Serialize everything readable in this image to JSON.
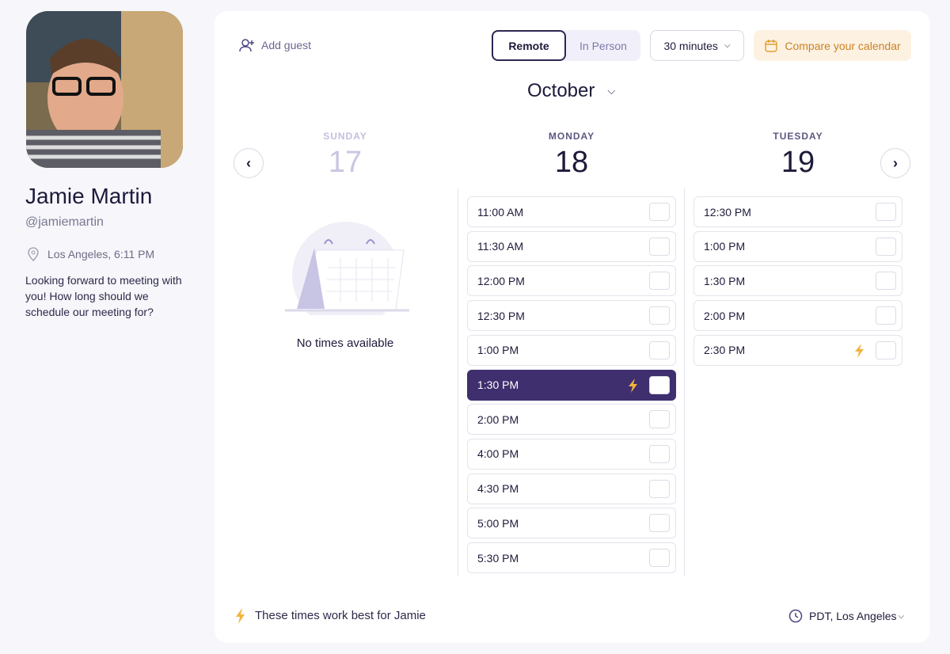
{
  "profile": {
    "name": "Jamie Martin",
    "handle": "@jamiemartin",
    "location": "Los Angeles, 6:11 PM",
    "bio": "Looking forward to meeting with you! How long should we schedule our meeting for?"
  },
  "header": {
    "add_guest": "Add guest",
    "modes": [
      "Remote",
      "In Person"
    ],
    "active_mode": 0,
    "duration": "30 minutes",
    "compare": "Compare your calendar"
  },
  "month": "October",
  "days": [
    {
      "weekday": "SUNDAY",
      "date": "17",
      "muted": true,
      "empty": "No times available",
      "slots": []
    },
    {
      "weekday": "MONDAY",
      "date": "18",
      "slots": [
        {
          "time": "11:00 AM",
          "level": 2
        },
        {
          "time": "11:30 AM",
          "level": 2
        },
        {
          "time": "12:00 PM",
          "level": 2
        },
        {
          "time": "12:30 PM",
          "level": 2
        },
        {
          "time": "1:00 PM",
          "level": 3
        },
        {
          "time": "1:30 PM",
          "level": 3,
          "best": true,
          "selected": true
        },
        {
          "time": "2:00 PM",
          "level": 3
        },
        {
          "time": "4:00 PM",
          "level": 3
        },
        {
          "time": "4:30 PM",
          "level": 2
        },
        {
          "time": "5:00 PM",
          "level": 2
        },
        {
          "time": "5:30 PM",
          "level": 2
        }
      ]
    },
    {
      "weekday": "TUESDAY",
      "date": "19",
      "slots": [
        {
          "time": "12:30 PM",
          "level": 2
        },
        {
          "time": "1:00 PM",
          "level": 3
        },
        {
          "time": "1:30 PM",
          "level": 3
        },
        {
          "time": "2:00 PM",
          "level": 3
        },
        {
          "time": "2:30 PM",
          "level": 3,
          "best": true
        }
      ]
    }
  ],
  "footer": {
    "best_note": "These times work best for Jamie",
    "timezone": "PDT, Los Angeles"
  }
}
